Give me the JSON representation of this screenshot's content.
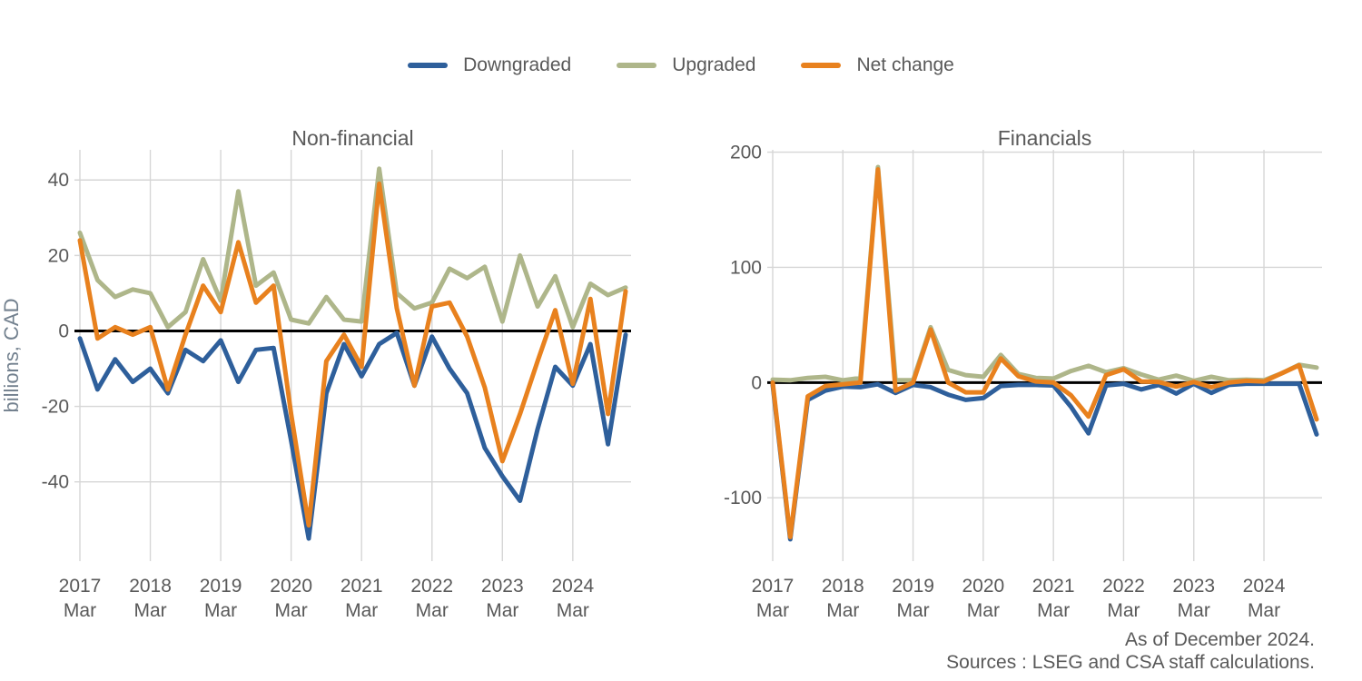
{
  "legend": {
    "items": [
      {
        "label": "Downgraded",
        "color": "#2e5f9b"
      },
      {
        "label": "Upgraded",
        "color": "#aeb68a"
      },
      {
        "label": "Net change",
        "color": "#e8811e"
      }
    ]
  },
  "footer": {
    "as_of": "As of December 2024.",
    "sources": "Sources : LSEG and CSA staff calculations."
  },
  "colors": {
    "downgraded": "#2e5f9b",
    "upgraded": "#aeb68a",
    "net_change": "#e8811e",
    "gridline": "#d6d6d6",
    "zero_line": "#000000",
    "text": "#595959",
    "axis_label": "#72808e"
  },
  "chart_data": [
    {
      "type": "line",
      "title": "Non-financial",
      "ylabel": "billions, CAD",
      "x_year_labels": [
        "2017",
        "2018",
        "2019",
        "2020",
        "2021",
        "2022",
        "2023",
        "2024"
      ],
      "x_sub_label": "Mar",
      "categories": [
        "2017 Mar",
        "2017 Jun",
        "2017 Sep",
        "2017 Dec",
        "2018 Mar",
        "2018 Jun",
        "2018 Sep",
        "2018 Dec",
        "2019 Mar",
        "2019 Jun",
        "2019 Sep",
        "2019 Dec",
        "2020 Mar",
        "2020 Jun",
        "2020 Sep",
        "2020 Dec",
        "2021 Mar",
        "2021 Jun",
        "2021 Sep",
        "2021 Dec",
        "2022 Mar",
        "2022 Jun",
        "2022 Sep",
        "2022 Dec",
        "2023 Mar",
        "2023 Jun",
        "2023 Sep",
        "2023 Dec",
        "2024 Mar",
        "2024 Jun",
        "2024 Sep",
        "2024 Dec"
      ],
      "yticks": [
        40,
        20,
        0,
        -20,
        -40
      ],
      "ylim": [
        -61,
        48
      ],
      "grid": true,
      "zero_line": true,
      "legend_position": "top",
      "series": [
        {
          "name": "Downgraded",
          "color": "#2e5f9b",
          "values": [
            -2,
            -15.5,
            -7.5,
            -13.5,
            -10,
            -16.5,
            -5,
            -8,
            -2.5,
            -13.5,
            -5,
            -4.5,
            -29,
            -55,
            -16.5,
            -3.5,
            -12,
            -3.5,
            -0.5,
            -14.5,
            -1.5,
            -10,
            -16.5,
            -31,
            -38.5,
            -45,
            -26,
            -9.5,
            -14.5,
            -3.5,
            -30,
            -1
          ]
        },
        {
          "name": "Upgraded",
          "color": "#aeb68a",
          "values": [
            26,
            13.5,
            9,
            11,
            10,
            1,
            5,
            19,
            8,
            37,
            12,
            15.5,
            3,
            2,
            9,
            3,
            2.5,
            43,
            10,
            6,
            7.5,
            16.5,
            14,
            17,
            2.5,
            20,
            6.5,
            14.5,
            1,
            12.5,
            9.5,
            11.5
          ]
        },
        {
          "name": "Net change",
          "color": "#e8811e",
          "values": [
            24,
            -2,
            1,
            -1,
            1,
            -15.5,
            -1,
            12,
            5,
            23.5,
            7.5,
            12,
            -22,
            -51.5,
            -8,
            -1,
            -9.5,
            39,
            6,
            -14.5,
            6.5,
            7.5,
            -1.5,
            -15,
            -34.5,
            -22,
            -8,
            5.5,
            -14,
            8.5,
            -22,
            10.5
          ]
        }
      ]
    },
    {
      "type": "line",
      "title": "Financials",
      "ylabel": "",
      "x_year_labels": [
        "2017",
        "2018",
        "2019",
        "2020",
        "2021",
        "2022",
        "2023",
        "2024"
      ],
      "x_sub_label": "Mar",
      "categories": [
        "2017 Mar",
        "2017 Jun",
        "2017 Sep",
        "2017 Dec",
        "2018 Mar",
        "2018 Jun",
        "2018 Sep",
        "2018 Dec",
        "2019 Mar",
        "2019 Jun",
        "2019 Sep",
        "2019 Dec",
        "2020 Mar",
        "2020 Jun",
        "2020 Sep",
        "2020 Dec",
        "2021 Mar",
        "2021 Jun",
        "2021 Sep",
        "2021 Dec",
        "2022 Mar",
        "2022 Jun",
        "2022 Sep",
        "2022 Dec",
        "2023 Mar",
        "2023 Jun",
        "2023 Sep",
        "2023 Dec",
        "2024 Mar",
        "2024 Jun",
        "2024 Sep",
        "2024 Dec"
      ],
      "yticks": [
        200,
        100,
        0,
        -100
      ],
      "ylim": [
        -155,
        202
      ],
      "grid": true,
      "zero_line": true,
      "legend_position": "top",
      "series": [
        {
          "name": "Downgraded",
          "color": "#2e5f9b",
          "values": [
            -2,
            -136,
            -15,
            -7,
            -3.5,
            -4,
            -1.5,
            -9,
            -2,
            -4,
            -10.5,
            -15,
            -13.5,
            -3,
            -2,
            -2,
            -2.5,
            -21,
            -44,
            -2.5,
            -1,
            -6,
            -2,
            -9.5,
            -1,
            -9,
            -2,
            -1,
            -1,
            -1,
            -1,
            -45
          ]
        },
        {
          "name": "Upgraded",
          "color": "#aeb68a",
          "values": [
            2.5,
            2,
            4,
            5,
            2,
            4,
            187,
            2,
            2,
            48,
            11,
            6.5,
            5,
            24,
            7.5,
            4,
            3.5,
            10,
            14.5,
            9,
            12.5,
            7,
            2.5,
            6,
            1.5,
            5,
            2,
            2.5,
            2,
            8,
            15.5,
            13
          ]
        },
        {
          "name": "Net change",
          "color": "#e8811e",
          "values": [
            0,
            -134,
            -12,
            -3,
            -1.5,
            0,
            185,
            -7,
            0,
            46,
            0,
            -8.5,
            -8.5,
            21,
            5.5,
            1,
            0,
            -11,
            -29.5,
            6.5,
            11.5,
            1,
            0.5,
            -3.5,
            0.5,
            -4,
            0,
            1.5,
            1,
            8,
            15,
            -32
          ]
        }
      ]
    }
  ]
}
